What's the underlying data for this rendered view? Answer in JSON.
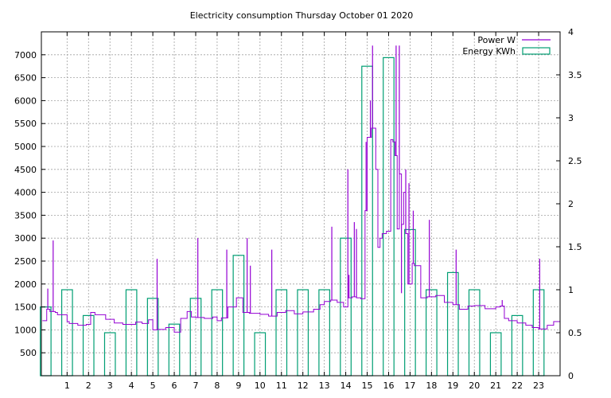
{
  "chart_data": {
    "type": "bar",
    "title": "Electricity consumption Thursday October 01 2020",
    "xlabel": "",
    "ylabel": "",
    "xlim": [
      -0.2,
      24.0
    ],
    "ylim_left": [
      0,
      7500
    ],
    "ylim_right": [
      0,
      4
    ],
    "xticks": [
      1,
      2,
      3,
      4,
      5,
      6,
      7,
      8,
      9,
      10,
      11,
      12,
      13,
      14,
      15,
      16,
      17,
      18,
      19,
      20,
      21,
      22,
      23
    ],
    "yticks_left": [
      500,
      1000,
      1500,
      2000,
      2500,
      3000,
      3500,
      4000,
      4500,
      5000,
      5500,
      6000,
      6500,
      7000
    ],
    "yticks_right": [
      "0",
      "0.5",
      "1",
      "1.5",
      "2",
      "2.5",
      "3",
      "3.5",
      "4"
    ],
    "grid": true,
    "legend_position": "top-right",
    "colors": {
      "power": "#9400d3",
      "energy": "#009e73",
      "grid": "#a0a0a0"
    },
    "series": [
      {
        "name": "Energy KWh",
        "axis": "right",
        "style": "boxes",
        "x": [
          0,
          1,
          2,
          3,
          4,
          5,
          6,
          7,
          8,
          9,
          10,
          11,
          12,
          13,
          14,
          15,
          16,
          17,
          18,
          19,
          20,
          21,
          22,
          23
        ],
        "values": [
          0.8,
          1.0,
          0.7,
          0.5,
          1.0,
          0.9,
          0.6,
          0.9,
          1.0,
          1.4,
          0.5,
          1.0,
          1.0,
          1.0,
          1.6,
          3.6,
          3.7,
          1.7,
          1.0,
          1.2,
          1.0,
          0.5,
          0.7,
          1.0
        ]
      },
      {
        "name": "Power W",
        "axis": "left",
        "style": "steps",
        "x": [
          -0.15,
          0.05,
          0.2,
          0.45,
          0.55,
          1.0,
          1.1,
          1.5,
          1.9,
          2.1,
          2.3,
          2.8,
          3.2,
          3.6,
          4.2,
          4.5,
          4.8,
          5.0,
          5.2,
          5.6,
          6.0,
          6.3,
          6.6,
          6.8,
          7.0,
          7.4,
          7.8,
          8.0,
          8.2,
          8.5,
          8.9,
          9.2,
          9.5,
          10.0,
          10.4,
          10.8,
          11.2,
          11.6,
          12.0,
          12.5,
          12.8,
          13.0,
          13.3,
          13.6,
          13.9,
          14.1,
          14.3,
          14.5,
          14.7,
          14.9,
          15.0,
          15.2,
          15.4,
          15.5,
          15.6,
          15.7,
          15.9,
          16.1,
          16.2,
          16.3,
          16.4,
          16.5,
          16.6,
          16.7,
          16.8,
          16.9,
          17.1,
          17.2,
          17.5,
          17.8,
          18.2,
          18.6,
          19.0,
          19.3,
          19.7,
          20.0,
          20.5,
          21.0,
          21.2,
          21.4,
          21.6,
          22.0,
          22.4,
          22.7,
          23.0,
          23.4,
          23.7,
          24.0
        ],
        "values": [
          1200,
          1450,
          1400,
          1380,
          1330,
          1180,
          1140,
          1100,
          1120,
          1380,
          1330,
          1230,
          1150,
          1120,
          1170,
          1140,
          1220,
          1000,
          1010,
          1050,
          950,
          1250,
          1400,
          1280,
          1270,
          1250,
          1280,
          1200,
          1260,
          1500,
          1700,
          1380,
          1360,
          1340,
          1300,
          1380,
          1420,
          1350,
          1390,
          1450,
          1550,
          1620,
          1650,
          1600,
          1500,
          1700,
          1720,
          1700,
          1680,
          3600,
          5200,
          5400,
          4500,
          2800,
          3000,
          3100,
          3150,
          5150,
          5100,
          4800,
          3200,
          4400,
          3300,
          4000,
          3100,
          2000,
          2450,
          2400,
          1700,
          1720,
          1750,
          1600,
          1550,
          1450,
          1520,
          1530,
          1460,
          1500,
          1520,
          1250,
          1200,
          1150,
          1100,
          1050,
          1020,
          1100,
          1180,
          1200
        ],
        "spikes": [
          {
            "x": 0.1,
            "value": 1900
          },
          {
            "x": 0.35,
            "value": 2950
          },
          {
            "x": 5.2,
            "value": 2550
          },
          {
            "x": 7.1,
            "value": 3000
          },
          {
            "x": 8.45,
            "value": 2750
          },
          {
            "x": 9.4,
            "value": 3000
          },
          {
            "x": 9.55,
            "value": 2400
          },
          {
            "x": 10.55,
            "value": 2750
          },
          {
            "x": 13.35,
            "value": 3250
          },
          {
            "x": 14.1,
            "value": 4500
          },
          {
            "x": 14.15,
            "value": 2200
          },
          {
            "x": 14.4,
            "value": 3350
          },
          {
            "x": 14.5,
            "value": 3200
          },
          {
            "x": 14.95,
            "value": 5100
          },
          {
            "x": 15.15,
            "value": 6000
          },
          {
            "x": 15.25,
            "value": 7200
          },
          {
            "x": 16.35,
            "value": 7200
          },
          {
            "x": 16.5,
            "value": 7200
          },
          {
            "x": 16.6,
            "value": 1800
          },
          {
            "x": 16.8,
            "value": 4500
          },
          {
            "x": 16.95,
            "value": 4200
          },
          {
            "x": 17.15,
            "value": 3600
          },
          {
            "x": 17.9,
            "value": 3400
          },
          {
            "x": 19.15,
            "value": 2750
          },
          {
            "x": 21.3,
            "value": 1650
          },
          {
            "x": 23.05,
            "value": 2550
          }
        ]
      }
    ]
  }
}
